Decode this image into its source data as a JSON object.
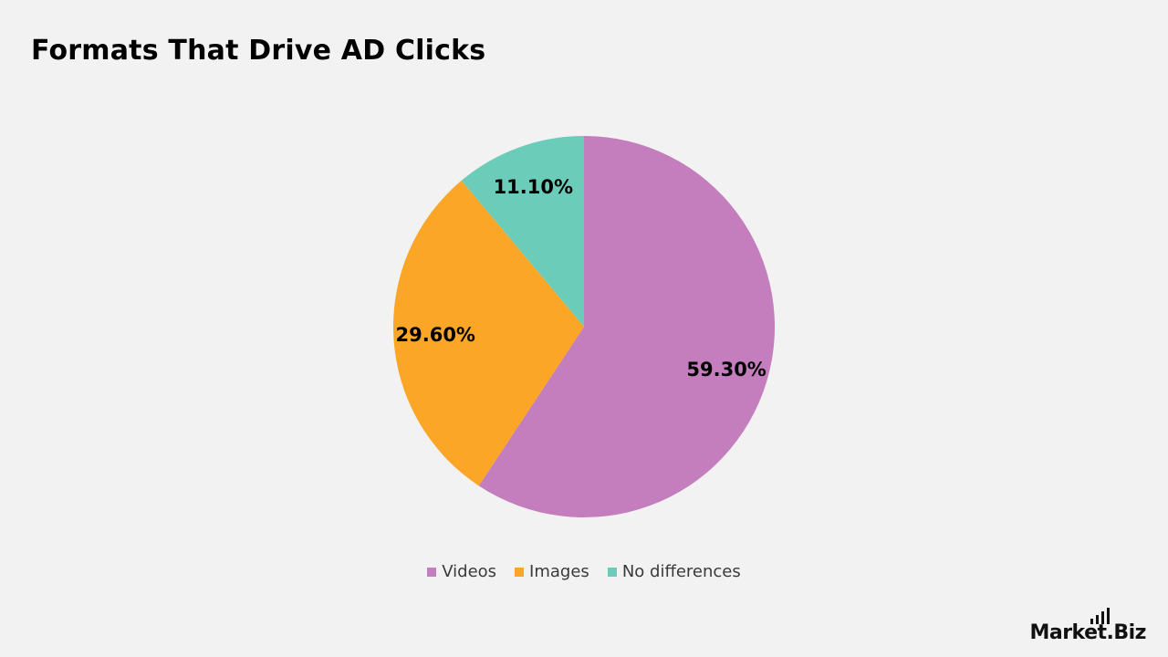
{
  "chart_data": {
    "type": "pie",
    "title": "Formats That Drive AD Clicks",
    "slices": [
      {
        "label": "Videos",
        "value": 59.3,
        "display": "59.30%",
        "color": "#c47dbd"
      },
      {
        "label": "Images",
        "value": 29.6,
        "display": "29.60%",
        "color": "#fba626"
      },
      {
        "label": "No differences",
        "value": 11.1,
        "display": "11.10%",
        "color": "#6bcdb9"
      }
    ],
    "start_angle": "12 o'clock",
    "direction": "clockwise",
    "legend_placement": "bottom"
  },
  "brand": {
    "name": "Market.Biz"
  }
}
